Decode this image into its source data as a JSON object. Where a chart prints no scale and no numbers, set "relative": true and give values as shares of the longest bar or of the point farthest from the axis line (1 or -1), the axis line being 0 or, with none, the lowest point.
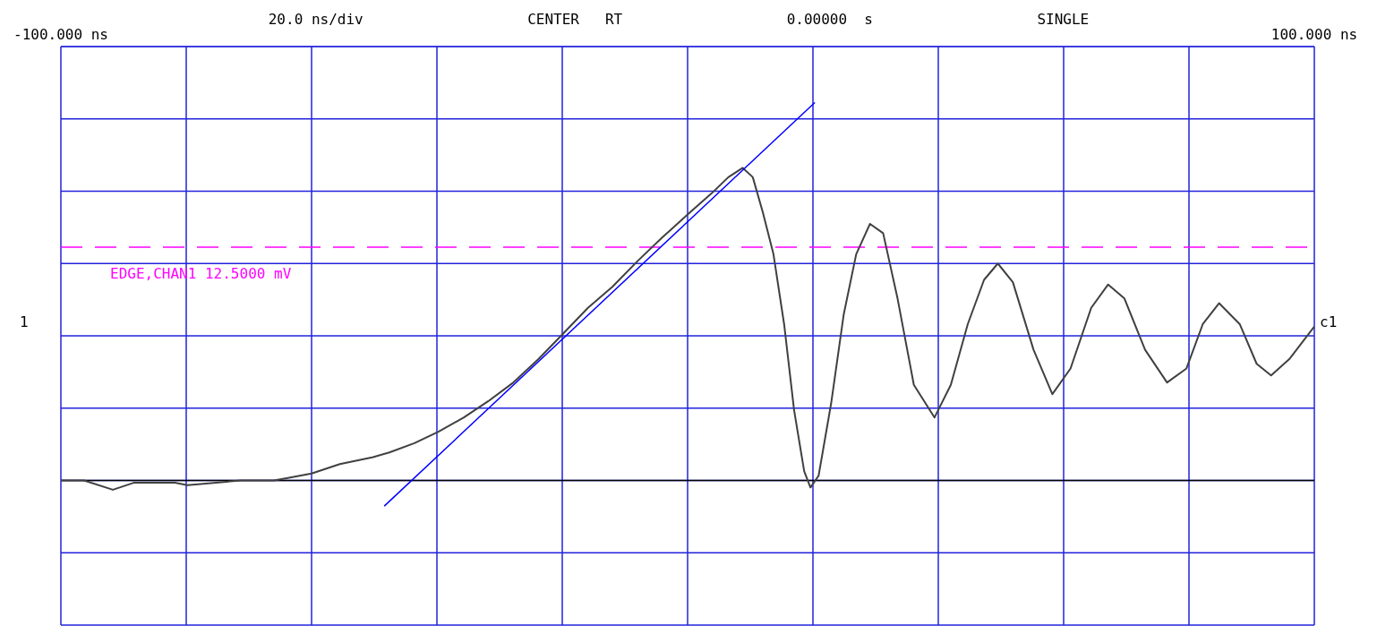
{
  "chart_data": {
    "type": "line",
    "relative": true,
    "xlim": [
      -100,
      100
    ],
    "xticks": [
      {
        "value": -100,
        "label": "-100.000 ns"
      },
      {
        "value": -80,
        "label": null
      },
      {
        "value": -60,
        "label": null
      },
      {
        "value": -40,
        "label": null
      },
      {
        "value": -20,
        "label": null
      },
      {
        "value": 0,
        "label": null
      },
      {
        "value": 20,
        "label": null
      },
      {
        "value": 40,
        "label": null
      },
      {
        "value": 60,
        "label": null
      },
      {
        "value": 80,
        "label": null
      },
      {
        "value": 100,
        "label": "100.000 ns"
      }
    ],
    "tick_labels": "x",
    "grid": true,
    "legend": false,
    "marker": "none",
    "annotations": [
      "20.0 ns/div",
      "CENTER   RT",
      "0.00000  s",
      "SINGLE",
      "1",
      "c1"
    ],
    "ref_lines": [
      {
        "axis": "y",
        "value": 0.38,
        "label": "EDGE,CHAN1   12.5000 mV",
        "color": "#ff00ff",
        "line_style": "dashed"
      },
      {
        "axis": "y",
        "value": -0.62,
        "label": null,
        "color": "#000000",
        "line_style": "solid"
      }
    ],
    "series": [
      {
        "color": "#404040",
        "line_style": "solid",
        "x": [
          -100,
          -96.3,
          -91.7,
          -88.4,
          -81.8,
          -79.8,
          -71.3,
          -66,
          -64,
          -60,
          -55.5,
          -50.2,
          -47.6,
          -43.6,
          -39.7,
          -35.7,
          -31.8,
          -27.8,
          -23.8,
          -20.2,
          -15.9,
          -12,
          -8,
          -4.1,
          0,
          3.8,
          6.5,
          8.8,
          10.4,
          12,
          13.7,
          15.4,
          17,
          18.6,
          19.6,
          20.9,
          22.9,
          24.9,
          26.9,
          29.1,
          31.2,
          33.5,
          36.1,
          39.4,
          42,
          44.7,
          47.3,
          49.5,
          51.9,
          55.2,
          58.2,
          61.1,
          64.4,
          67.1,
          69.7,
          73,
          76.5,
          79.6,
          82.2,
          84.8,
          88.1,
          90.8,
          93.1,
          96,
          100
        ],
        "values": [
          -0.62,
          -0.62,
          -0.66,
          -0.63,
          -0.63,
          -0.64,
          -0.62,
          -0.62,
          -0.61,
          -0.59,
          -0.55,
          -0.52,
          -0.5,
          -0.46,
          -0.41,
          -0.35,
          -0.28,
          -0.2,
          -0.1,
          0,
          0.12,
          0.21,
          0.32,
          0.42,
          0.52,
          0.61,
          0.68,
          0.72,
          0.68,
          0.53,
          0.35,
          0.05,
          -0.32,
          -0.58,
          -0.65,
          -0.6,
          -0.29,
          0.09,
          0.35,
          0.48,
          0.44,
          0.16,
          -0.21,
          -0.35,
          -0.21,
          0.05,
          0.24,
          0.31,
          0.23,
          -0.06,
          -0.25,
          -0.14,
          0.12,
          0.22,
          0.16,
          -0.06,
          -0.2,
          -0.14,
          0.05,
          0.14,
          0.05,
          -0.12,
          -0.17,
          -0.1,
          0.04
        ]
      },
      {
        "color": "#0000ff",
        "line_style": "solid",
        "x": [
          -48.4,
          20.3
        ],
        "values": [
          -0.73,
          1
        ]
      }
    ]
  }
}
